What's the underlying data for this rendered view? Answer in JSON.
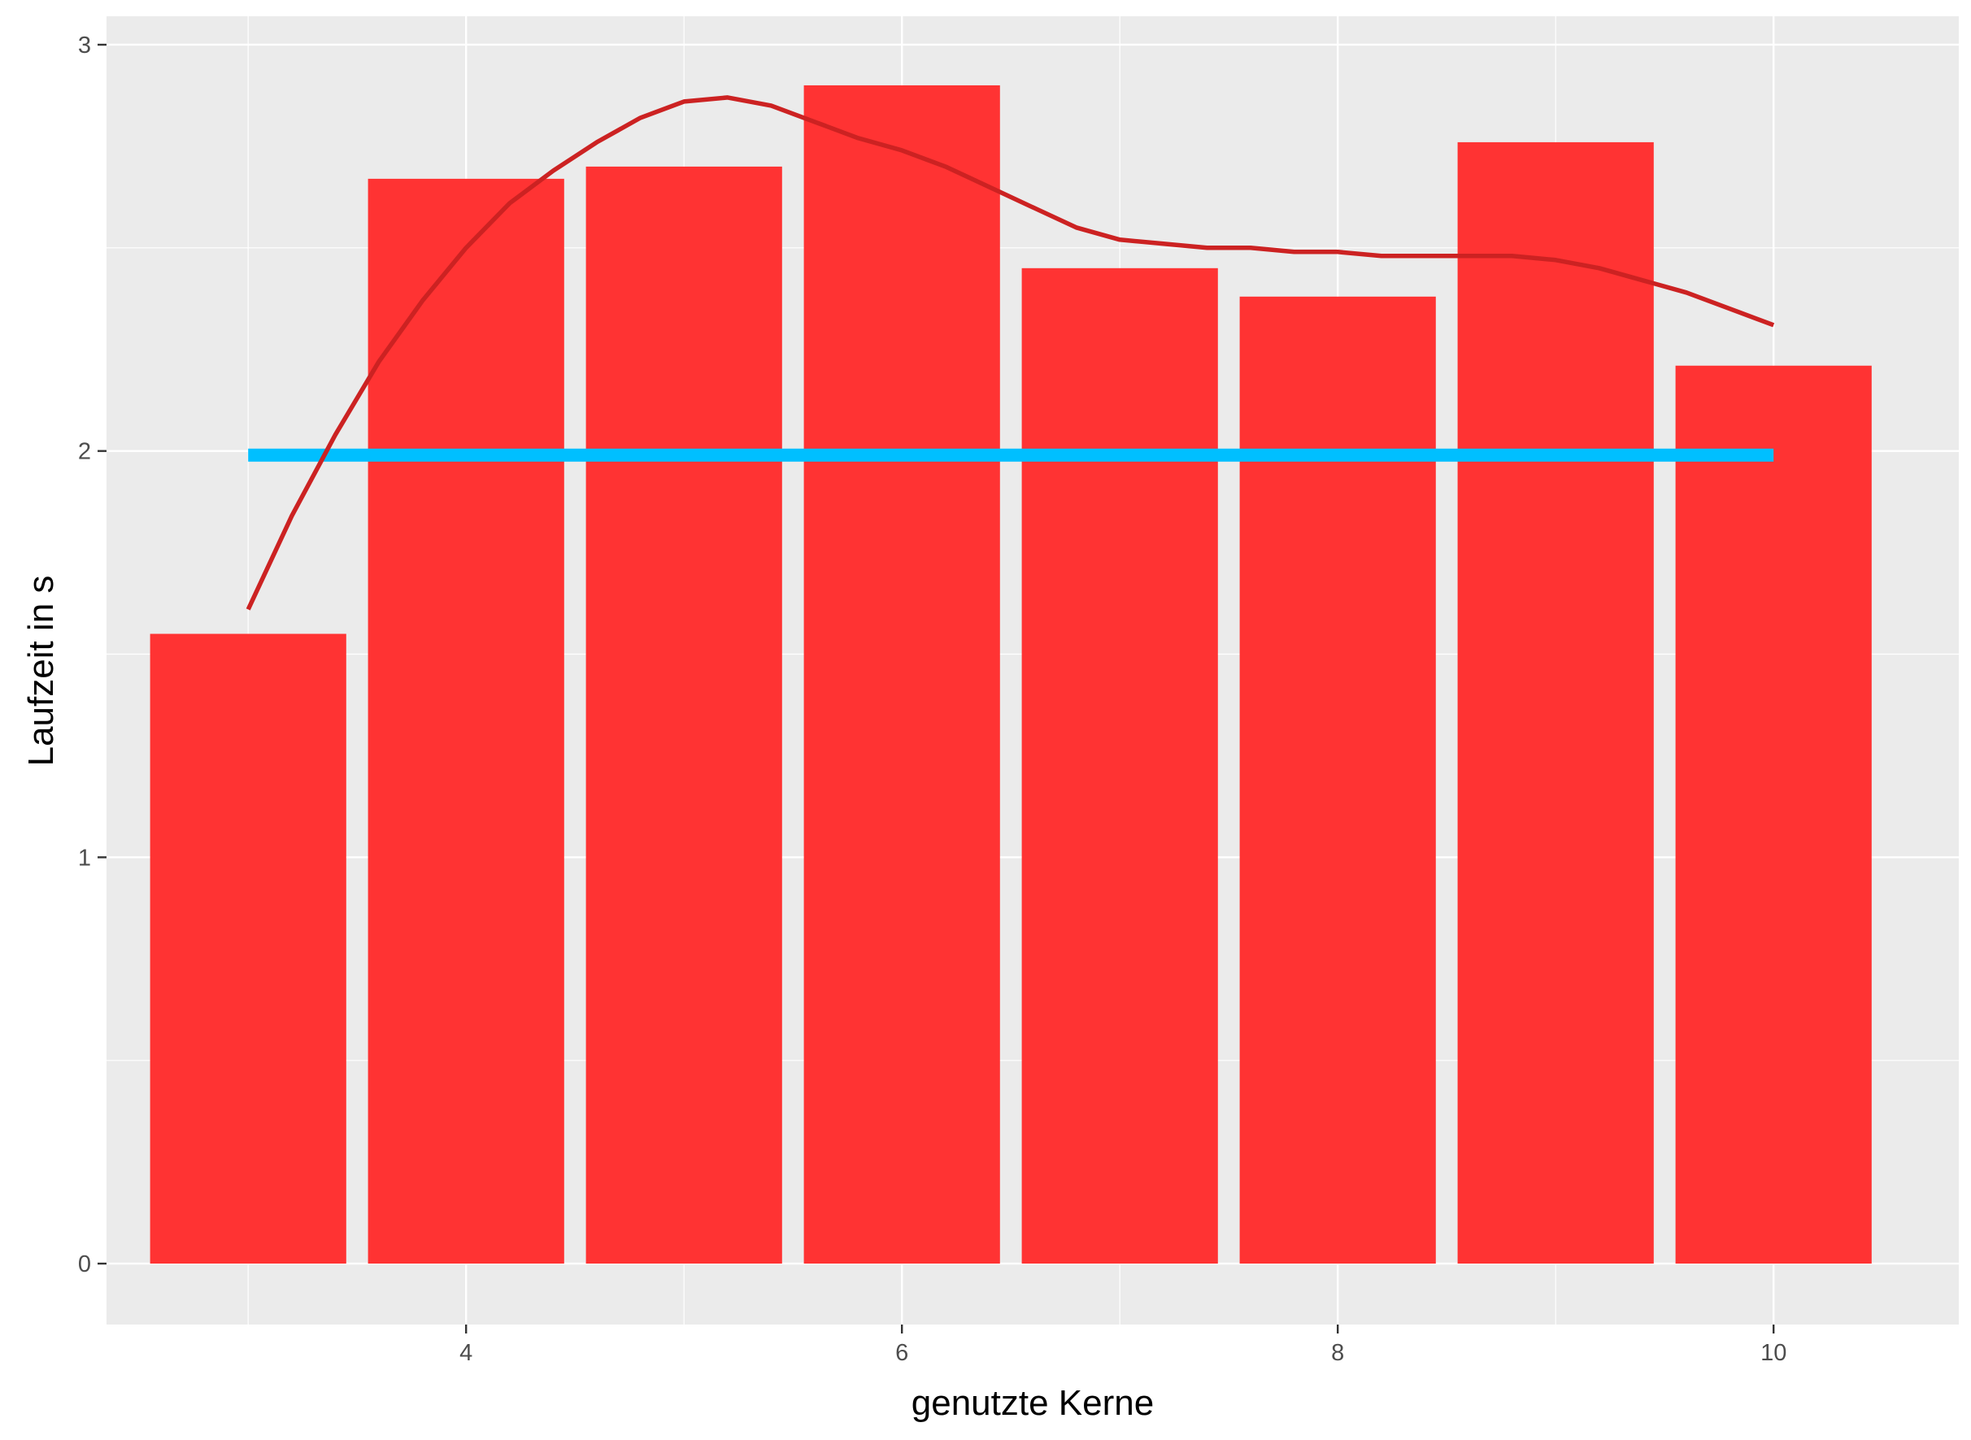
{
  "chart_data": {
    "type": "bar",
    "xlabel": "genutzte Kerne",
    "ylabel": "Laufzeit in s",
    "x": [
      3,
      4,
      5,
      6,
      7,
      8,
      9,
      10
    ],
    "values": [
      1.55,
      2.67,
      2.7,
      2.9,
      2.45,
      2.38,
      2.76,
      2.21
    ],
    "bar_color": "#ff3333",
    "xlim": [
      2.35,
      10.85
    ],
    "ylim": [
      -0.15,
      3.07
    ],
    "x_ticks": [
      4,
      6,
      8,
      10
    ],
    "x_tick_labels": [
      "4",
      "6",
      "8",
      "10"
    ],
    "y_ticks": [
      0,
      1,
      2,
      3
    ],
    "y_tick_labels": [
      "0",
      "1",
      "2",
      "3"
    ],
    "grid": true,
    "panel_background": "#ebebeb",
    "overlays": [
      {
        "type": "line",
        "color": "#00bfff",
        "x": [
          3,
          10
        ],
        "y": [
          1.99,
          1.99
        ]
      },
      {
        "type": "smooth",
        "color": "#cc2222",
        "x": [
          3,
          3.2,
          3.4,
          3.6,
          3.8,
          4,
          4.2,
          4.4,
          4.6,
          4.8,
          5,
          5.2,
          5.4,
          5.6,
          5.8,
          6,
          6.2,
          6.4,
          6.6,
          6.8,
          7,
          7.2,
          7.4,
          7.6,
          7.8,
          8,
          8.2,
          8.4,
          8.6,
          8.8,
          9,
          9.2,
          9.4,
          9.6,
          9.8,
          10
        ],
        "y": [
          1.61,
          1.84,
          2.04,
          2.22,
          2.37,
          2.5,
          2.61,
          2.69,
          2.76,
          2.82,
          2.86,
          2.87,
          2.85,
          2.81,
          2.77,
          2.74,
          2.7,
          2.65,
          2.6,
          2.55,
          2.52,
          2.51,
          2.5,
          2.5,
          2.49,
          2.49,
          2.48,
          2.48,
          2.48,
          2.48,
          2.47,
          2.45,
          2.42,
          2.39,
          2.35,
          2.31
        ]
      }
    ]
  }
}
